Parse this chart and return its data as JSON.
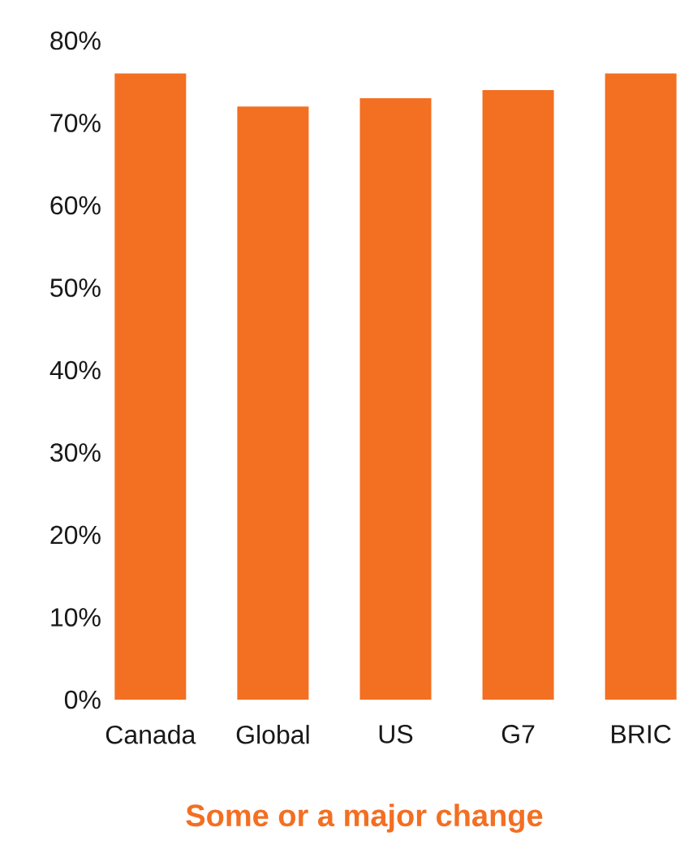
{
  "chart_data": {
    "type": "bar",
    "xlabel": "Some or a major change",
    "categories": [
      "Canada",
      "Global",
      "US",
      "G7",
      "BRIC"
    ],
    "values": [
      76,
      72,
      73,
      74,
      76
    ],
    "color": "#f36f21",
    "ylim": [
      0,
      80
    ],
    "yticks": [
      {
        "value": 0,
        "label": "0%"
      },
      {
        "value": 10,
        "label": "10%"
      },
      {
        "value": 20,
        "label": "20%"
      },
      {
        "value": 30,
        "label": "30%"
      },
      {
        "value": 40,
        "label": "40%"
      },
      {
        "value": 50,
        "label": "50%"
      },
      {
        "value": 60,
        "label": "60%"
      },
      {
        "value": 70,
        "label": "70%"
      },
      {
        "value": 80,
        "label": "80%"
      }
    ],
    "grid": false
  }
}
